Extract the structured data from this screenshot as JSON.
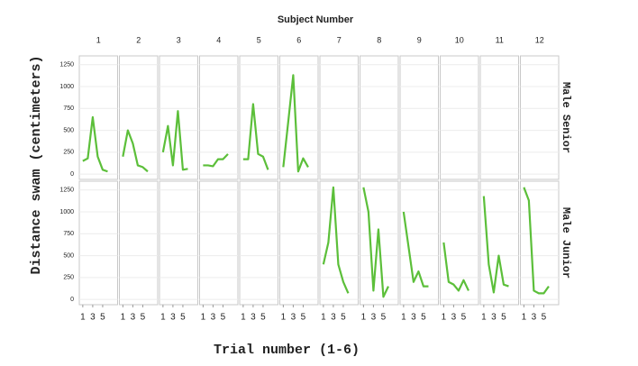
{
  "chart_data": {
    "type": "line",
    "title": "Subject Number",
    "x_label": "Trial number (1-6)",
    "y_label": "Distance swam (centimeters)",
    "color": "#5cbf3a",
    "grid": true,
    "subjects": [
      1,
      2,
      3,
      4,
      5,
      6,
      7,
      8,
      9,
      10,
      11,
      12
    ],
    "x": [
      1,
      2,
      3,
      4,
      5,
      6
    ],
    "xlim": [
      0.3,
      8
    ],
    "xticks": [
      1,
      3,
      5
    ],
    "ylim": [
      -60,
      1350
    ],
    "yticks": [
      0,
      250,
      500,
      750,
      1000,
      1250
    ],
    "rows": [
      {
        "label": "Male Senior",
        "values": [
          [
            150,
            180,
            650,
            200,
            50,
            30
          ],
          [
            200,
            500,
            350,
            100,
            80,
            30
          ],
          [
            250,
            550,
            100,
            720,
            50,
            60
          ],
          [
            100,
            100,
            90,
            170,
            170,
            230
          ],
          [
            170,
            170,
            800,
            230,
            200,
            50
          ],
          [
            80,
            600,
            1130,
            30,
            180,
            80
          ],
          [
            null,
            null,
            null,
            null,
            null,
            null
          ],
          [
            null,
            null,
            null,
            null,
            null,
            null
          ],
          [
            null,
            null,
            null,
            null,
            null,
            null
          ],
          [
            null,
            null,
            null,
            null,
            null,
            null
          ],
          [
            null,
            null,
            null,
            null,
            null,
            null
          ],
          [
            null,
            null,
            null,
            null,
            null,
            null
          ]
        ]
      },
      {
        "label": "Male Junior",
        "values": [
          [
            null,
            null,
            null,
            null,
            null,
            null
          ],
          [
            null,
            null,
            null,
            null,
            null,
            null
          ],
          [
            null,
            null,
            null,
            null,
            null,
            null
          ],
          [
            null,
            null,
            null,
            null,
            null,
            null
          ],
          [
            null,
            null,
            null,
            null,
            null,
            null
          ],
          [
            null,
            null,
            null,
            null,
            null,
            null
          ],
          [
            400,
            650,
            1280,
            400,
            200,
            70
          ],
          [
            1280,
            1000,
            100,
            800,
            30,
            150
          ],
          [
            1000,
            600,
            200,
            320,
            150,
            150
          ],
          [
            650,
            200,
            170,
            100,
            220,
            100
          ],
          [
            1180,
            400,
            80,
            500,
            170,
            150
          ],
          [
            1280,
            1130,
            100,
            70,
            70,
            150
          ]
        ]
      }
    ]
  }
}
